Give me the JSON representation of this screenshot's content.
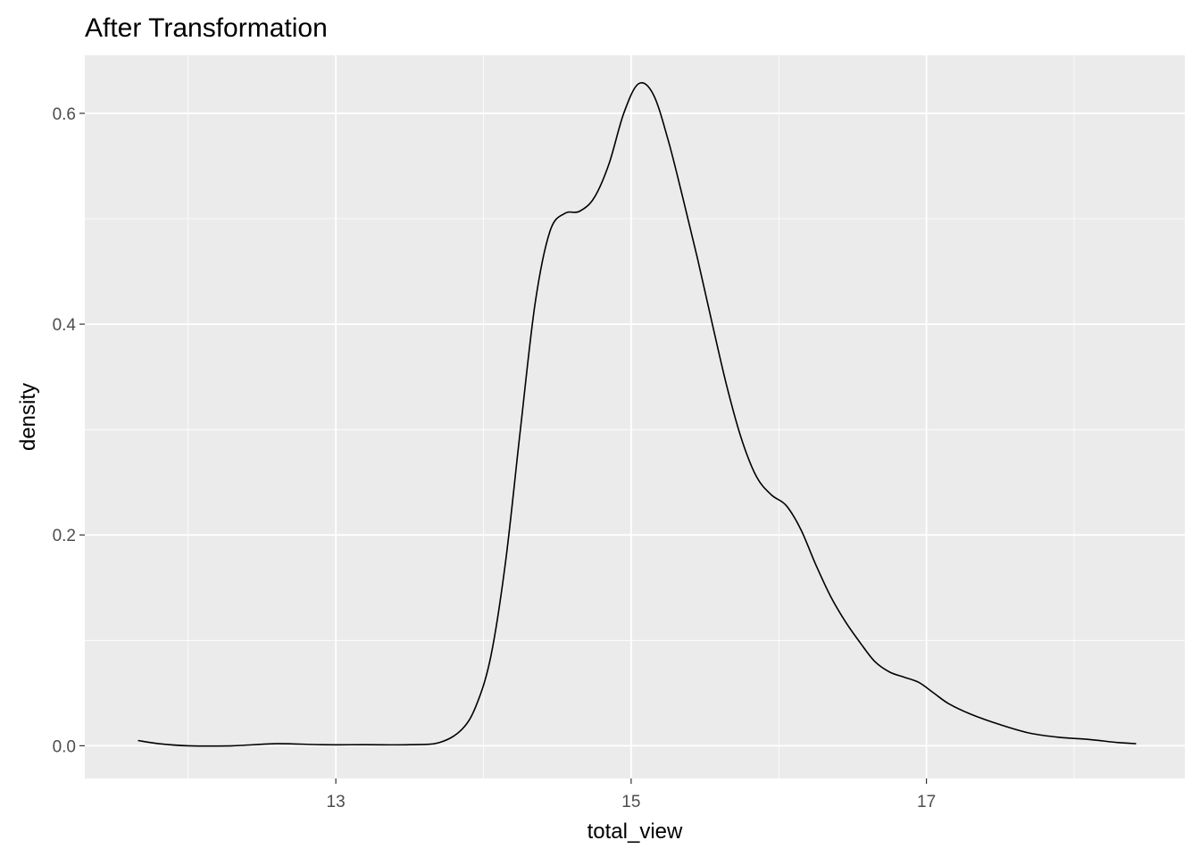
{
  "chart_data": {
    "type": "line",
    "title": "After Transformation",
    "xlabel": "total_view",
    "ylabel": "density",
    "xlim": [
      11.3,
      18.75
    ],
    "ylim": [
      -0.031,
      0.655
    ],
    "x_ticks": [
      13,
      15,
      17
    ],
    "x_minor_ticks": [
      12,
      14,
      16,
      18
    ],
    "y_ticks": [
      0.0,
      0.2,
      0.4,
      0.6
    ],
    "y_tick_labels": [
      "0.0",
      "0.2",
      "0.4",
      "0.6"
    ],
    "y_minor_ticks": [
      0.1,
      0.3,
      0.5
    ],
    "grid": true,
    "legend": "none",
    "colors": {
      "panel_bg": "#EBEBEB",
      "grid": "#FFFFFF",
      "line": "#000000",
      "tick_text": "#4D4D4D",
      "tick_mark": "#333333"
    },
    "series": [
      {
        "x": [
          11.66,
          11.8,
          12.0,
          12.3,
          12.6,
          12.9,
          13.2,
          13.5,
          13.7,
          13.85,
          13.95,
          14.05,
          14.15,
          14.25,
          14.35,
          14.45,
          14.55,
          14.65,
          14.75,
          14.85,
          14.95,
          15.05,
          15.15,
          15.25,
          15.35,
          15.45,
          15.55,
          15.65,
          15.75,
          15.85,
          15.95,
          16.05,
          16.15,
          16.25,
          16.35,
          16.45,
          16.55,
          16.65,
          16.75,
          16.85,
          16.95,
          17.05,
          17.15,
          17.3,
          17.5,
          17.7,
          17.9,
          18.1,
          18.3,
          18.42
        ],
        "y": [
          0.005,
          0.002,
          0.0,
          0.0,
          0.002,
          0.001,
          0.001,
          0.001,
          0.003,
          0.015,
          0.038,
          0.085,
          0.175,
          0.3,
          0.42,
          0.488,
          0.505,
          0.507,
          0.52,
          0.552,
          0.6,
          0.628,
          0.618,
          0.575,
          0.52,
          0.462,
          0.4,
          0.34,
          0.29,
          0.255,
          0.238,
          0.228,
          0.205,
          0.172,
          0.142,
          0.118,
          0.098,
          0.08,
          0.07,
          0.065,
          0.06,
          0.05,
          0.04,
          0.03,
          0.02,
          0.012,
          0.008,
          0.006,
          0.003,
          0.002
        ]
      }
    ]
  }
}
